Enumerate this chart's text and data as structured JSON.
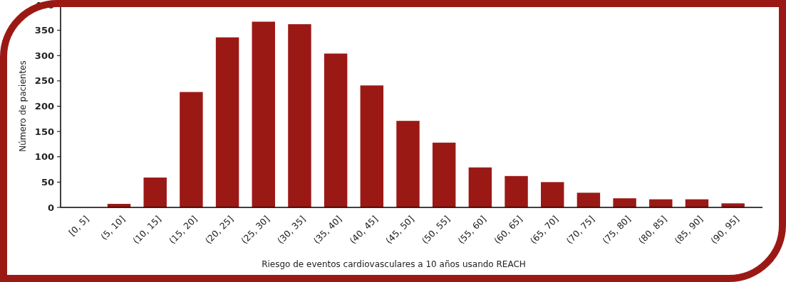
{
  "chart_data": {
    "type": "bar",
    "xlabel": "Riesgo de eventos cardiovasculares a 10 años usando REACH",
    "ylabel": "Número de pacientes",
    "categories": [
      "[0, 5]",
      "(5, 10]",
      "(10, 15]",
      "(15, 20]",
      "(20, 25]",
      "(25, 30]",
      "(30, 35]",
      "(35, 40]",
      "(40, 45]",
      "(45, 50]",
      "(50, 55]",
      "(55, 60]",
      "(60, 65]",
      "(65, 70]",
      "(70, 75]",
      "(75, 80]",
      "(80, 85]",
      "(85, 90]",
      "(90, 95]"
    ],
    "values": [
      0,
      7,
      59,
      228,
      336,
      367,
      362,
      304,
      241,
      171,
      128,
      79,
      62,
      50,
      29,
      18,
      16,
      16,
      8
    ],
    "color": "#9b1915",
    "ylim": [
      0,
      400
    ],
    "yticks": [
      0,
      50,
      100,
      150,
      200,
      250,
      300,
      350,
      400
    ],
    "grid": false
  }
}
